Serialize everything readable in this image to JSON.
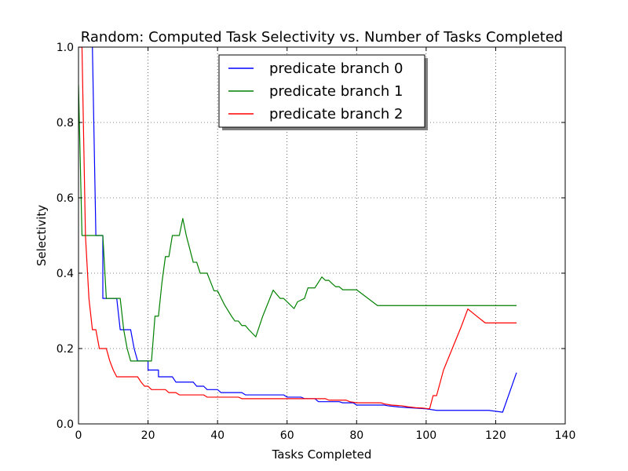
{
  "chart_data": {
    "type": "line",
    "title": "Random: Computed Task Selectivity vs. Number of Tasks Completed",
    "xlabel": "Tasks Completed",
    "ylabel": "Selectivity",
    "xlim": [
      0,
      140
    ],
    "ylim": [
      0,
      1.0
    ],
    "xticks": [
      0,
      20,
      40,
      60,
      80,
      100,
      120,
      140
    ],
    "yticks": [
      0.0,
      0.2,
      0.4,
      0.6,
      0.8,
      1.0
    ],
    "xtick_labels": [
      "0",
      "20",
      "40",
      "60",
      "80",
      "100",
      "120",
      "140"
    ],
    "ytick_labels": [
      "0.0",
      "0.2",
      "0.4",
      "0.6",
      "0.8",
      "1.0"
    ],
    "grid": true,
    "legend_position": "top-center",
    "series": [
      {
        "name": "predicate branch 0",
        "color": "#0000ff",
        "points": [
          [
            4,
            1.0
          ],
          [
            5,
            0.5
          ],
          [
            7,
            0.5
          ],
          [
            7,
            0.333
          ],
          [
            11,
            0.333
          ],
          [
            12,
            0.25
          ],
          [
            15,
            0.25
          ],
          [
            16,
            0.2
          ],
          [
            17,
            0.167
          ],
          [
            20,
            0.167
          ],
          [
            20,
            0.143
          ],
          [
            23,
            0.143
          ],
          [
            23,
            0.125
          ],
          [
            27,
            0.125
          ],
          [
            28,
            0.111
          ],
          [
            33,
            0.111
          ],
          [
            34,
            0.1
          ],
          [
            36,
            0.1
          ],
          [
            37,
            0.091
          ],
          [
            40,
            0.091
          ],
          [
            41,
            0.083
          ],
          [
            47,
            0.083
          ],
          [
            48,
            0.077
          ],
          [
            59,
            0.077
          ],
          [
            60,
            0.071
          ],
          [
            64,
            0.071
          ],
          [
            65,
            0.067
          ],
          [
            68,
            0.067
          ],
          [
            69,
            0.059
          ],
          [
            75,
            0.059
          ],
          [
            76,
            0.056
          ],
          [
            79,
            0.056
          ],
          [
            80,
            0.05
          ],
          [
            88,
            0.05
          ],
          [
            89,
            0.048
          ],
          [
            92,
            0.045
          ],
          [
            95,
            0.043
          ],
          [
            97,
            0.042
          ],
          [
            100,
            0.04
          ],
          [
            103,
            0.036
          ],
          [
            118,
            0.036
          ],
          [
            122,
            0.031
          ],
          [
            126,
            0.136
          ]
        ]
      },
      {
        "name": "predicate branch 1",
        "color": "#008000",
        "points": [
          [
            0,
            0.9
          ],
          [
            1,
            0.5
          ],
          [
            7,
            0.5
          ],
          [
            8,
            0.333
          ],
          [
            12,
            0.333
          ],
          [
            13,
            0.25
          ],
          [
            14,
            0.2
          ],
          [
            15,
            0.167
          ],
          [
            21,
            0.167
          ],
          [
            22,
            0.286
          ],
          [
            23,
            0.286
          ],
          [
            24,
            0.375
          ],
          [
            25,
            0.444
          ],
          [
            26,
            0.444
          ],
          [
            27,
            0.5
          ],
          [
            29,
            0.5
          ],
          [
            30,
            0.545
          ],
          [
            31,
            0.5
          ],
          [
            33,
            0.429
          ],
          [
            34,
            0.429
          ],
          [
            35,
            0.4
          ],
          [
            37,
            0.4
          ],
          [
            39,
            0.353
          ],
          [
            40,
            0.353
          ],
          [
            42,
            0.316
          ],
          [
            44,
            0.286
          ],
          [
            45,
            0.273
          ],
          [
            46,
            0.273
          ],
          [
            47,
            0.261
          ],
          [
            48,
            0.261
          ],
          [
            49,
            0.25
          ],
          [
            51,
            0.231
          ],
          [
            53,
            0.286
          ],
          [
            56,
            0.355
          ],
          [
            58,
            0.333
          ],
          [
            59,
            0.333
          ],
          [
            62,
            0.306
          ],
          [
            63,
            0.324
          ],
          [
            65,
            0.333
          ],
          [
            66,
            0.361
          ],
          [
            68,
            0.361
          ],
          [
            70,
            0.39
          ],
          [
            71,
            0.381
          ],
          [
            72,
            0.381
          ],
          [
            73,
            0.372
          ],
          [
            74,
            0.364
          ],
          [
            75,
            0.364
          ],
          [
            76,
            0.356
          ],
          [
            80,
            0.356
          ],
          [
            86,
            0.314
          ],
          [
            126,
            0.314
          ]
        ]
      },
      {
        "name": "predicate branch 2",
        "color": "#ff0000",
        "points": [
          [
            0,
            1.0
          ],
          [
            1,
            1.0
          ],
          [
            2,
            0.5
          ],
          [
            3,
            0.333
          ],
          [
            4,
            0.25
          ],
          [
            5,
            0.25
          ],
          [
            6,
            0.2
          ],
          [
            8,
            0.2
          ],
          [
            9,
            0.167
          ],
          [
            10,
            0.143
          ],
          [
            11,
            0.125
          ],
          [
            17,
            0.125
          ],
          [
            18,
            0.111
          ],
          [
            19,
            0.1
          ],
          [
            20,
            0.1
          ],
          [
            21,
            0.091
          ],
          [
            25,
            0.091
          ],
          [
            26,
            0.083
          ],
          [
            28,
            0.083
          ],
          [
            29,
            0.077
          ],
          [
            36,
            0.077
          ],
          [
            37,
            0.071
          ],
          [
            46,
            0.071
          ],
          [
            47,
            0.067
          ],
          [
            71,
            0.067
          ],
          [
            72,
            0.063
          ],
          [
            77,
            0.063
          ],
          [
            78,
            0.059
          ],
          [
            80,
            0.056
          ],
          [
            87,
            0.056
          ],
          [
            88,
            0.053
          ],
          [
            90,
            0.05
          ],
          [
            93,
            0.048
          ],
          [
            95,
            0.045
          ],
          [
            97,
            0.043
          ],
          [
            99,
            0.042
          ],
          [
            101,
            0.04
          ],
          [
            102,
            0.075
          ],
          [
            103,
            0.075
          ],
          [
            105,
            0.143
          ],
          [
            108,
            0.211
          ],
          [
            110,
            0.256
          ],
          [
            112,
            0.305
          ],
          [
            114,
            0.29
          ],
          [
            117,
            0.268
          ],
          [
            126,
            0.268
          ]
        ]
      }
    ]
  }
}
